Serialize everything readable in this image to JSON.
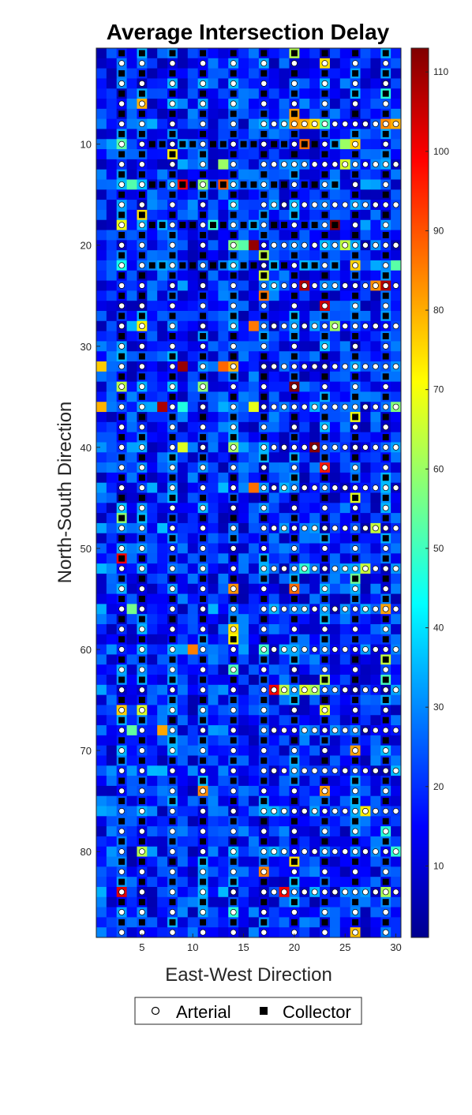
{
  "chart_data": {
    "type": "heatmap",
    "title": "Average Intersection Delay",
    "xlabel": "East-West Direction",
    "ylabel": "North-South Direction",
    "x_range": [
      1,
      30
    ],
    "y_range": [
      1,
      88
    ],
    "y_direction": "top-to-bottom",
    "x_ticks": [
      5,
      10,
      15,
      20,
      25,
      30
    ],
    "y_ticks": [
      10,
      20,
      30,
      40,
      50,
      60,
      70,
      80
    ],
    "colorbar": {
      "colormap": "jet",
      "range": [
        1,
        113
      ],
      "ticks": [
        10,
        20,
        30,
        40,
        50,
        60,
        70,
        80,
        90,
        100,
        110
      ]
    },
    "value_distribution": "mostly 5-35 (blue to light blue); sparse hotspots of 50-113 (green/yellow/orange/red)",
    "arterial_columns": [
      5,
      11,
      14,
      20,
      26
    ],
    "collector_columns": [
      3,
      8,
      17,
      23,
      29
    ],
    "arterial_rows": [
      8,
      12,
      16,
      20,
      24,
      28,
      32,
      36,
      40,
      44,
      48,
      52,
      56,
      60,
      64,
      68,
      72,
      76,
      80,
      84
    ],
    "collector_rows": [
      10,
      14,
      18,
      22
    ],
    "legend": {
      "placement": "bottom",
      "items": [
        {
          "symbol": "circle",
          "label": "Arterial"
        },
        {
          "symbol": "square",
          "label": "Collector"
        }
      ]
    },
    "grid": false
  }
}
